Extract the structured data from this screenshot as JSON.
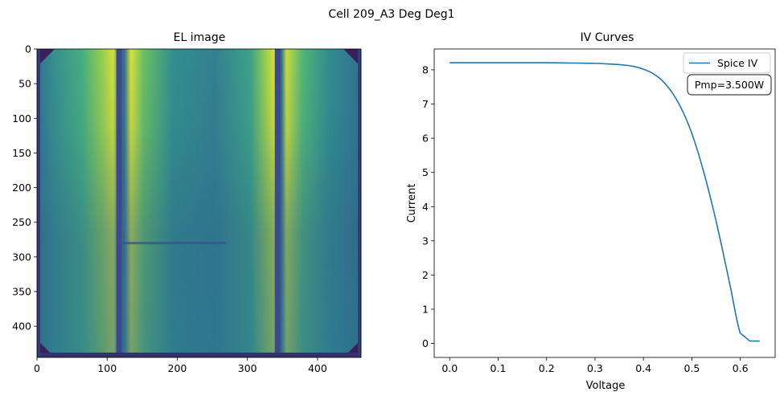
{
  "suptitle": "Cell 209_A3 Deg Deg1",
  "chart_data": [
    {
      "type": "heatmap",
      "title": "EL image",
      "colormap": "viridis",
      "xlim": [
        0,
        462
      ],
      "ylim": [
        445,
        0
      ],
      "x_ticks": [
        0,
        100,
        200,
        300,
        400
      ],
      "y_ticks": [
        0,
        50,
        100,
        150,
        200,
        250,
        300,
        350,
        400
      ],
      "x_tick_labels": [
        "0",
        "100",
        "200",
        "300",
        "400"
      ],
      "y_tick_labels": [
        "0",
        "50",
        "100",
        "150",
        "200",
        "250",
        "300",
        "350",
        "400"
      ],
      "busbars_x": [
        117,
        343
      ],
      "crack_y": 280,
      "crack_x_range": [
        122,
        270
      ]
    },
    {
      "type": "line",
      "title": "IV Curves",
      "xlabel": "Voltage",
      "ylabel": "Current",
      "xlim": [
        -0.032,
        0.672
      ],
      "ylim": [
        -0.41,
        8.61
      ],
      "x_ticks": [
        0.0,
        0.1,
        0.2,
        0.3,
        0.4,
        0.5,
        0.6
      ],
      "y_ticks": [
        0,
        1,
        2,
        3,
        4,
        5,
        6,
        7,
        8
      ],
      "x_tick_labels": [
        "0.0",
        "0.1",
        "0.2",
        "0.3",
        "0.4",
        "0.5",
        "0.6"
      ],
      "y_tick_labels": [
        "0",
        "1",
        "2",
        "3",
        "4",
        "5",
        "6",
        "7",
        "8"
      ],
      "legend_placement": "upper right",
      "annotation": "Pmp=3.500W",
      "series": [
        {
          "name": "Spice IV",
          "color": "#1f77b4",
          "x": [
            0.0,
            0.1,
            0.2,
            0.25,
            0.3,
            0.33,
            0.36,
            0.38,
            0.4,
            0.42,
            0.44,
            0.46,
            0.48,
            0.5,
            0.52,
            0.54,
            0.56,
            0.58,
            0.6,
            0.62,
            0.64
          ],
          "y": [
            8.21,
            8.21,
            8.21,
            8.2,
            8.19,
            8.17,
            8.14,
            8.1,
            8.02,
            7.89,
            7.67,
            7.32,
            6.82,
            6.14,
            5.24,
            4.17,
            2.95,
            1.62,
            0.3,
            0.07,
            0.07
          ]
        }
      ]
    }
  ]
}
